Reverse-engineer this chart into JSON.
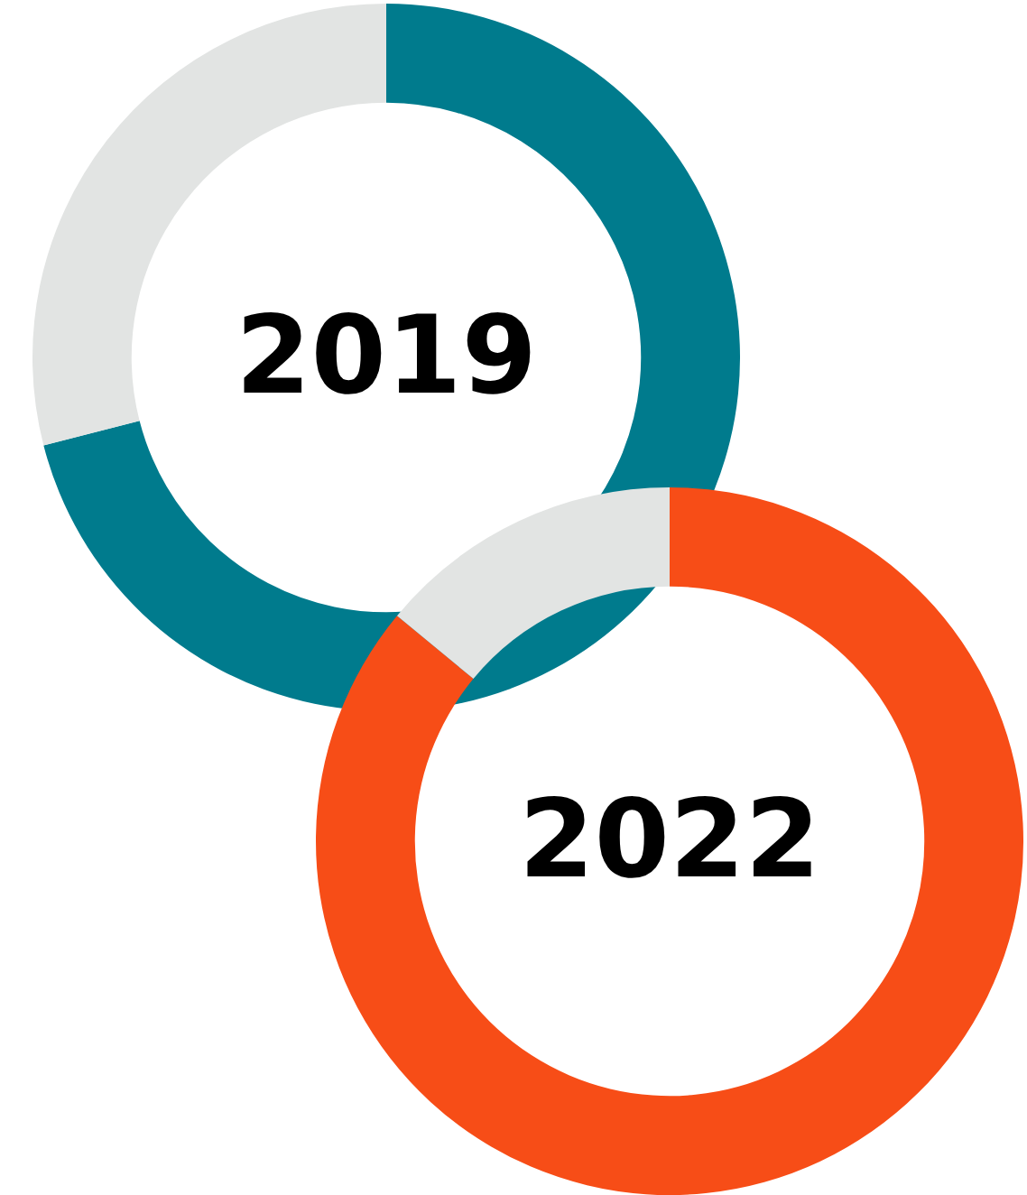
{
  "chart_data": [
    {
      "type": "donut",
      "title": "2019",
      "categories": [
        null,
        null
      ],
      "values": [
        71,
        29
      ],
      "colors": [
        "#007b8d",
        "#e2e4e3"
      ],
      "legend": false
    },
    {
      "type": "donut",
      "title": "2022",
      "categories": [
        null,
        null
      ],
      "values": [
        86,
        14
      ],
      "colors": [
        "#f74d17",
        "#e2e4e3"
      ],
      "legend": false
    }
  ]
}
